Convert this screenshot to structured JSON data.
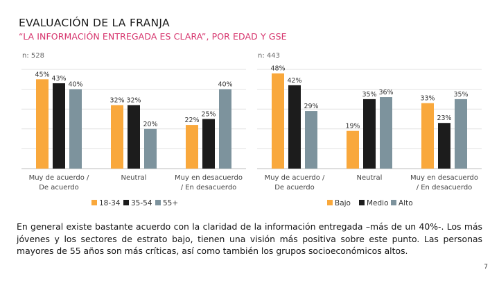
{
  "header": {
    "title": "EVALUACIÓN DE LA FRANJA",
    "subtitle": "“LA INFORMACIÓN ENTREGADA ES CLARA”, POR EDAD Y GSE"
  },
  "chart_data": [
    {
      "type": "bar",
      "n_label": "n: 528",
      "categories": [
        "Muy de acuerdo / De acuerdo",
        "Neutral",
        "Muy en desacuerdo / En desacuerdo"
      ],
      "categories_lines": [
        [
          "Muy de acuerdo /",
          "De acuerdo"
        ],
        [
          "Neutral"
        ],
        [
          "Muy en desacuerdo",
          "/ En desacuerdo"
        ]
      ],
      "series": [
        {
          "name": "18-34",
          "color": "#f9a83c",
          "values": [
            45,
            32,
            22
          ]
        },
        {
          "name": "35-54",
          "color": "#1c1c1c",
          "values": [
            43,
            32,
            25
          ]
        },
        {
          "name": "55+",
          "color": "#7d939d",
          "values": [
            40,
            20,
            40
          ]
        }
      ],
      "ylim": [
        0,
        50
      ],
      "grid": true,
      "legend": "bottom"
    },
    {
      "type": "bar",
      "n_label": "n: 443",
      "categories": [
        "Muy de acuerdo / De acuerdo",
        "Neutral",
        "Muy en desacuerdo / En desacuerdo"
      ],
      "categories_lines": [
        [
          "Muy de acuerdo /",
          "De acuerdo"
        ],
        [
          "Neutral"
        ],
        [
          "Muy en desacuerdo",
          "/ En desacuerdo"
        ]
      ],
      "series": [
        {
          "name": "Bajo",
          "color": "#f9a83c",
          "values": [
            48,
            19,
            33
          ]
        },
        {
          "name": "Medio",
          "color": "#1c1c1c",
          "values": [
            42,
            35,
            23
          ]
        },
        {
          "name": "Alto",
          "color": "#7d939d",
          "values": [
            29,
            36,
            35
          ]
        }
      ],
      "ylim": [
        0,
        50
      ],
      "grid": true,
      "legend": "bottom"
    }
  ],
  "body_text": "En general existe bastante acuerdo con la claridad de la información entregada –más de un 40%-. Los más jóvenes y los sectores de estrato bajo, tienen una visión más positiva sobre este punto. Las personas mayores de 55 años son más críticas, así como también los grupos socioeconómicos altos.",
  "page_number": "7"
}
